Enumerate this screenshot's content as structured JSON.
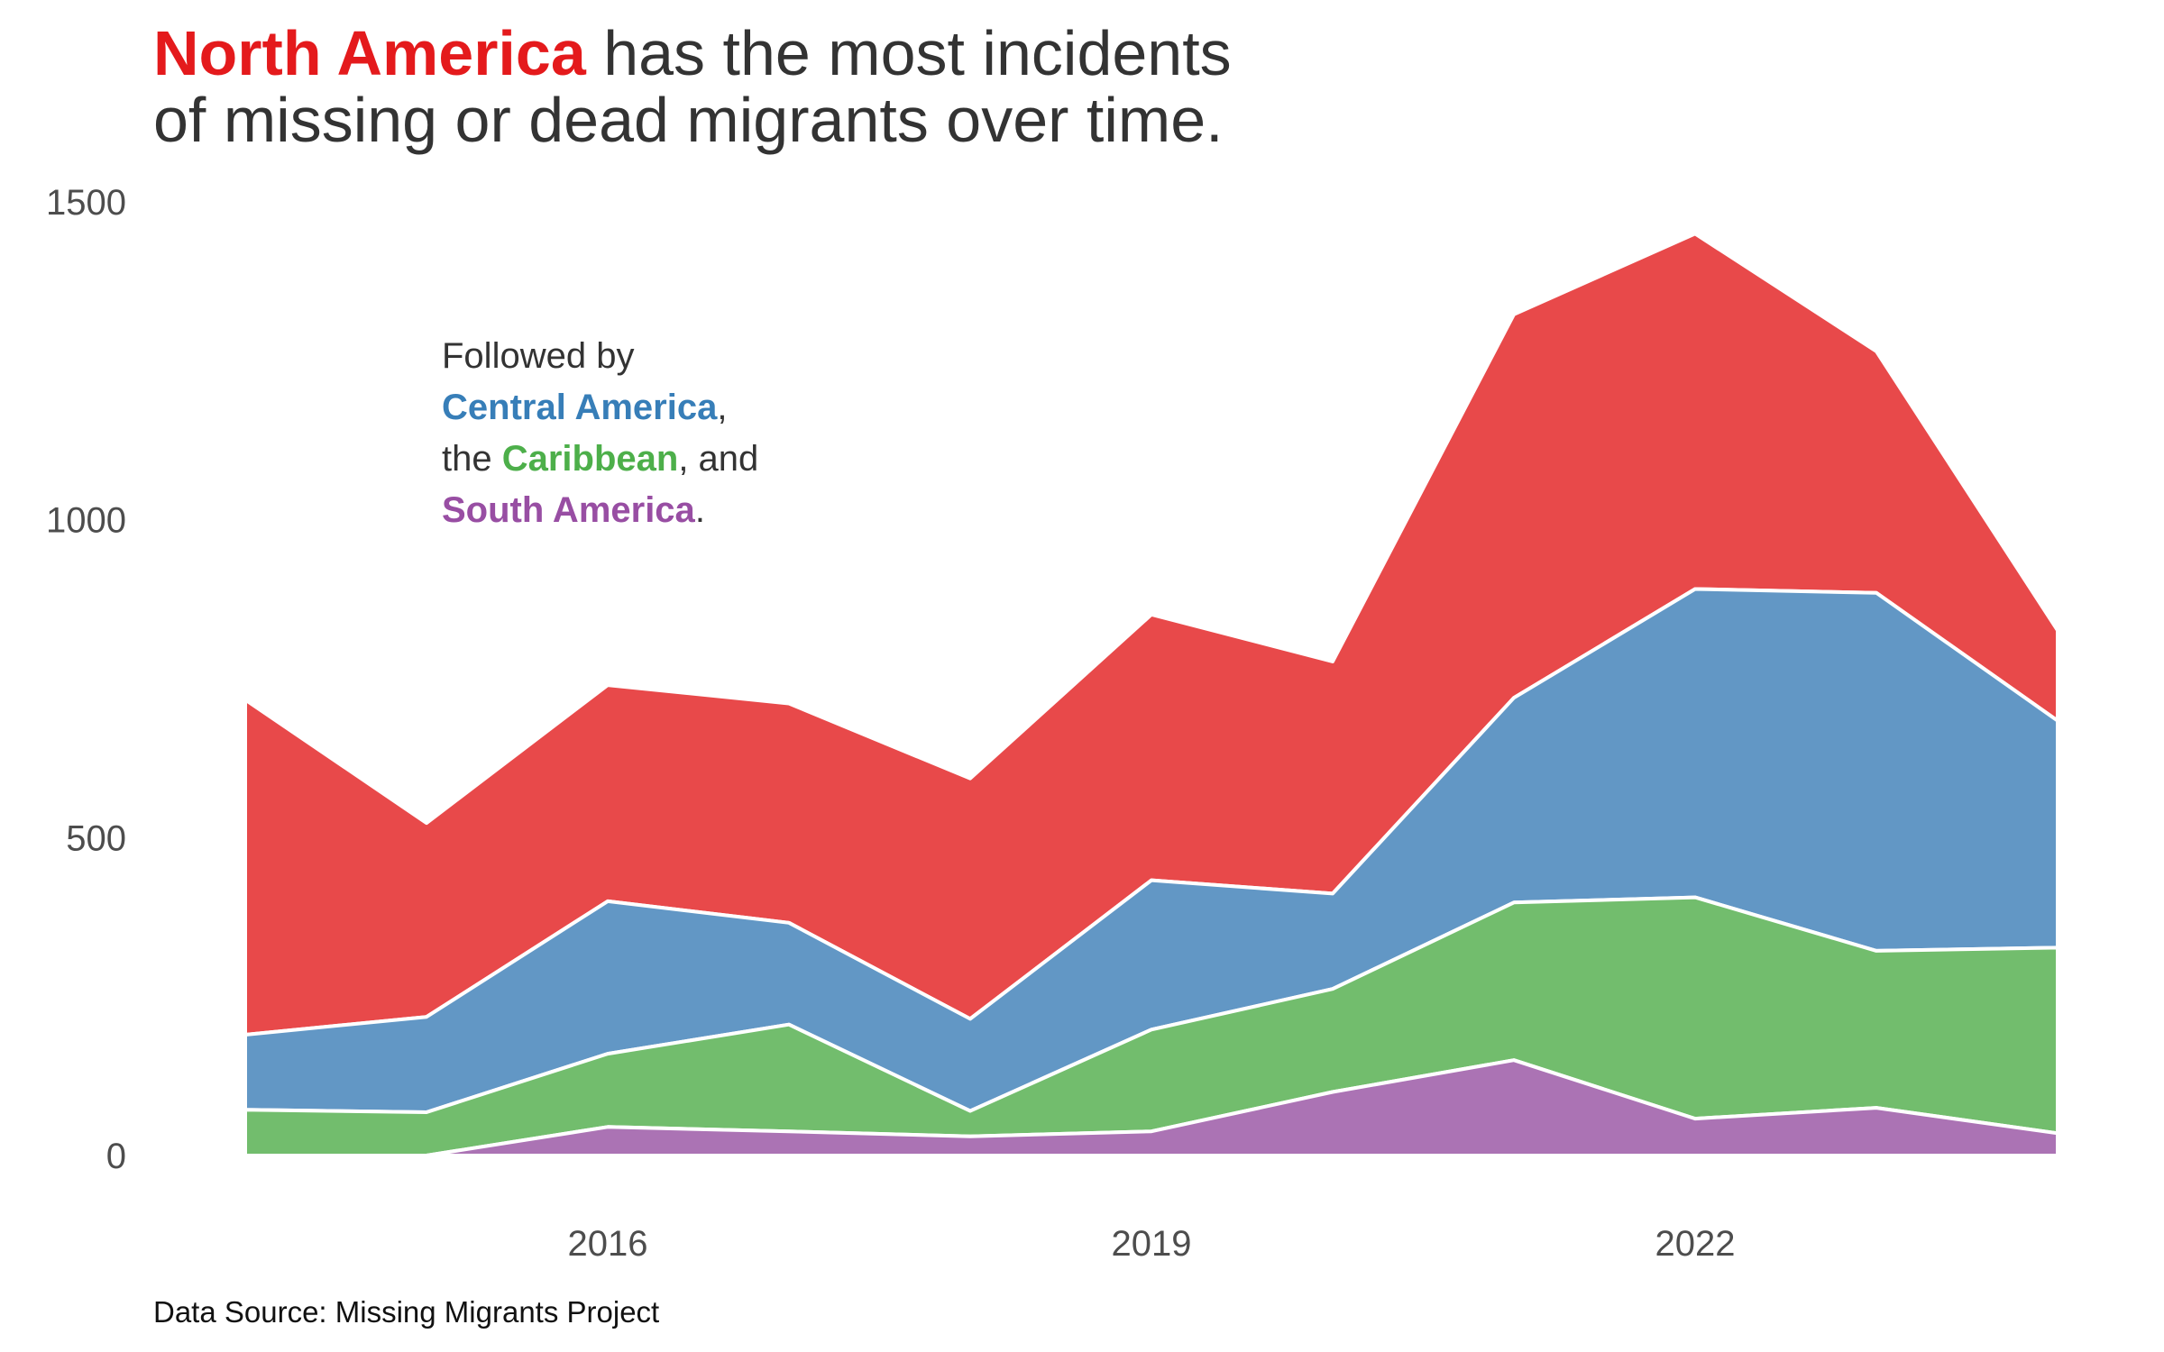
{
  "title": {
    "highlight": "North America",
    "rest_line1": " has the most incidents",
    "line2": "of missing or dead migrants over time."
  },
  "annotation": {
    "line1": "Followed by",
    "central": "Central America",
    "comma": ",",
    "the": "the ",
    "caribbean": "Caribbean",
    "and": ", and",
    "south": "South America",
    "period": "."
  },
  "source": "Data Source: Missing Migrants Project",
  "colors": {
    "north_america": "#E8494A",
    "central_america": "#6297C5",
    "caribbean": "#72BD6D",
    "south_america": "#AB73B4",
    "title_highlight": "#E41A1C",
    "central_text": "#377EB8",
    "caribbean_text": "#4DAF4A",
    "south_text": "#984EA3"
  },
  "chart_data": {
    "type": "area",
    "stacked": true,
    "x": [
      2014,
      2015,
      2016,
      2017,
      2018,
      2019,
      2020,
      2021,
      2022,
      2023,
      2024
    ],
    "xticks": [
      2016,
      2019,
      2022
    ],
    "yticks": [
      0,
      500,
      1000,
      1500
    ],
    "ylim": [
      0,
      1500
    ],
    "grid": false,
    "title": "North America has the most incidents of missing or dead migrants over time.",
    "series": [
      {
        "name": "South America",
        "values": [
          0,
          0,
          45,
          38,
          30,
          38,
          100,
          150,
          58,
          75,
          35
        ]
      },
      {
        "name": "Caribbean",
        "values": [
          72,
          68,
          115,
          168,
          40,
          160,
          162,
          248,
          348,
          247,
          292
        ]
      },
      {
        "name": "Central America",
        "values": [
          118,
          150,
          240,
          160,
          145,
          235,
          150,
          322,
          485,
          563,
          357
        ]
      },
      {
        "name": "North America",
        "values": [
          527,
          305,
          340,
          345,
          378,
          418,
          365,
          603,
          559,
          380,
          142
        ]
      }
    ]
  }
}
